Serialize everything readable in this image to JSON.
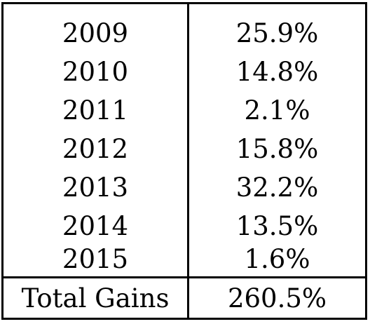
{
  "table": {
    "rows": [
      {
        "year": "2009",
        "gain": "25.9%"
      },
      {
        "year": "2010",
        "gain": "14.8%"
      },
      {
        "year": "2011",
        "gain": "2.1%"
      },
      {
        "year": "2012",
        "gain": "15.8%"
      },
      {
        "year": "2013",
        "gain": "32.2%"
      },
      {
        "year": "2014",
        "gain": "13.5%"
      },
      {
        "year": "2015",
        "gain": "1.6%"
      }
    ],
    "total": {
      "label": "Total Gains",
      "value": "260.5%"
    }
  }
}
